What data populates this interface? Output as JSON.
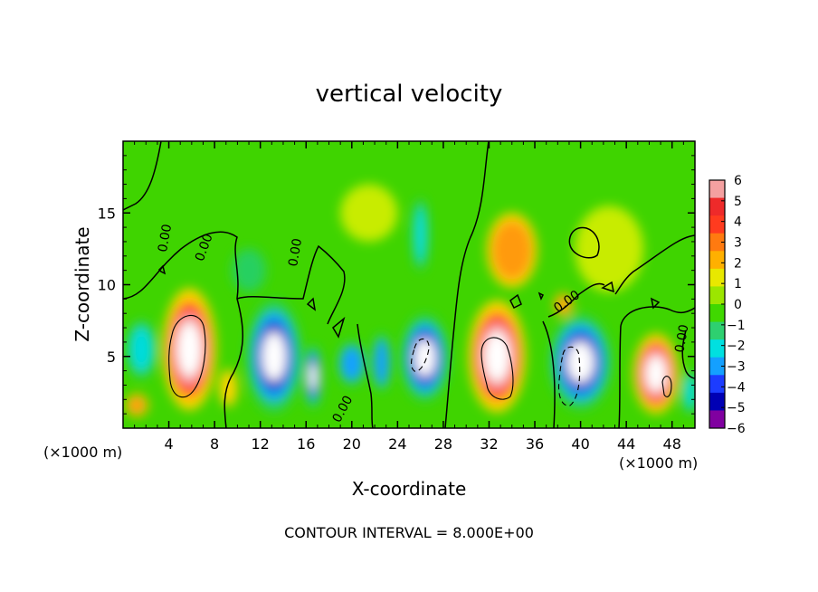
{
  "chart_data": {
    "type": "heatmap",
    "title": "vertical velocity",
    "xlabel": "X-coordinate",
    "ylabel": "Z-coordinate",
    "x_unit_left": "(×1000 m)",
    "x_unit_right": "(×1000 m)",
    "xlim": [
      0,
      50
    ],
    "ylim": [
      0,
      20
    ],
    "x_ticks": [
      4,
      8,
      12,
      16,
      20,
      24,
      28,
      32,
      36,
      40,
      44,
      48
    ],
    "y_ticks": [
      5,
      10,
      15
    ],
    "colorbar": {
      "levels": [
        6,
        5,
        4,
        3,
        2,
        1,
        0,
        -1,
        -2,
        -3,
        -4,
        -5,
        -6
      ],
      "colors": [
        "#f4a0a0",
        "#ee2a2a",
        "#ff3b1f",
        "#ff9a10",
        "#ffd400",
        "#c8ec00",
        "#3fd400",
        "#26d060",
        "#00dcdc",
        "#14a0ff",
        "#1c3cff",
        "#0000b4",
        "#8000a0"
      ],
      "color_blocks": [
        "#f4a0a0",
        "#ee2a2a",
        "#ff3b1f",
        "#ff7a10",
        "#ffb000",
        "#e8e800",
        "#9ce600",
        "#40d800",
        "#2ed070",
        "#00e0e0",
        "#14a0ff",
        "#1c3cff",
        "#0000b4",
        "#8000a0"
      ]
    },
    "background_value": 0.3,
    "contour_labels": [
      "0.00",
      "0.00",
      "0.00",
      "0.00",
      "0.00",
      "0.00"
    ],
    "cells": [
      {
        "x": 5.8,
        "z": 5.5,
        "w": 4.7,
        "h": 8.5,
        "value": 16
      },
      {
        "x": 13.2,
        "z": 5.0,
        "w": 4.8,
        "h": 7.8,
        "value": -14
      },
      {
        "x": 16.6,
        "z": 3.6,
        "w": 1.6,
        "h": 4.4,
        "value": -10
      },
      {
        "x": 26.4,
        "z": 4.9,
        "w": 4.2,
        "h": 6.0,
        "value": -11
      },
      {
        "x": 32.7,
        "z": 5.0,
        "w": 5.0,
        "h": 7.8,
        "value": 15
      },
      {
        "x": 40.0,
        "z": 4.6,
        "w": 5.4,
        "h": 6.6,
        "value": -13
      },
      {
        "x": 46.6,
        "z": 3.8,
        "w": 4.0,
        "h": 5.6,
        "value": 11
      },
      {
        "x": 34.0,
        "z": 12.4,
        "w": 4.4,
        "h": 5.2,
        "value": 3.2
      },
      {
        "x": 26.0,
        "z": 13.5,
        "w": 1.4,
        "h": 5.0,
        "value": -2.2
      },
      {
        "x": 21.5,
        "z": 15.0,
        "w": 5.0,
        "h": 4.0,
        "value": 1.2
      },
      {
        "x": 1.2,
        "z": 1.6,
        "w": 2.0,
        "h": 1.6,
        "value": 2.5
      },
      {
        "x": 1.6,
        "z": 5.5,
        "w": 2.6,
        "h": 4.0,
        "value": -1.6
      },
      {
        "x": 20.0,
        "z": 4.5,
        "w": 2.4,
        "h": 3.0,
        "value": -2.6
      },
      {
        "x": 22.6,
        "z": 4.6,
        "w": 1.6,
        "h": 4.0,
        "value": -3.0
      },
      {
        "x": 9.2,
        "z": 2.8,
        "w": 1.6,
        "h": 2.6,
        "value": 2.0
      },
      {
        "x": 11.0,
        "z": 11.0,
        "w": 3.0,
        "h": 3.0,
        "value": -1.2
      },
      {
        "x": 49.6,
        "z": 2.5,
        "w": 1.4,
        "h": 3.0,
        "value": -2.2
      },
      {
        "x": 38.5,
        "z": 8.6,
        "w": 1.6,
        "h": 1.6,
        "value": 3.0
      },
      {
        "x": 42.5,
        "z": 12.5,
        "w": 6.0,
        "h": 6.0,
        "value": 1.0
      }
    ]
  },
  "footer": {
    "contour_interval": "CONTOUR INTERVAL = 8.000E+00"
  }
}
